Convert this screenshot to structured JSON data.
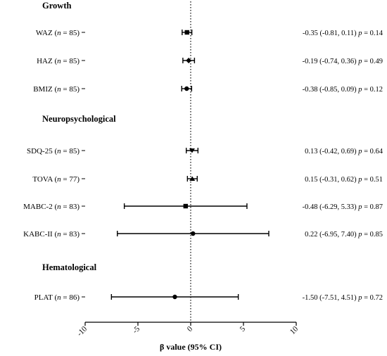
{
  "chart_data": {
    "type": "forest",
    "xlabel": "β value (95% CI)",
    "xlim": [
      -10,
      10
    ],
    "xticks": [
      -10,
      -5,
      0,
      5,
      10
    ],
    "reference_line": 0,
    "rows": [
      {
        "kind": "section",
        "label": "Growth"
      },
      {
        "kind": "item",
        "label_main": "WAZ",
        "n": "85",
        "est": -0.35,
        "lo": -0.81,
        "hi": 0.11,
        "text": "-0.35 (-0.81, 0.11)",
        "p": "0.14",
        "marker": "square"
      },
      {
        "kind": "item",
        "label_main": "HAZ",
        "n": "85",
        "est": -0.19,
        "lo": -0.74,
        "hi": 0.36,
        "text": "-0.19 (-0.74, 0.36)",
        "p": "0.49",
        "marker": "diamond"
      },
      {
        "kind": "item",
        "label_main": "BMIZ",
        "n": "85",
        "est": -0.38,
        "lo": -0.85,
        "hi": 0.09,
        "text": "-0.38 (-0.85, 0.09)",
        "p": "0.12",
        "marker": "circle"
      },
      {
        "kind": "section",
        "label": "Neuropsychological"
      },
      {
        "kind": "item",
        "label_main": "SDQ-25",
        "n": "85",
        "est": 0.13,
        "lo": -0.42,
        "hi": 0.69,
        "text": "0.13 (-0.42, 0.69)",
        "p": "0.64",
        "marker": "triangle-down"
      },
      {
        "kind": "item",
        "label_main": "TOVA",
        "n": "77",
        "est": 0.15,
        "lo": -0.31,
        "hi": 0.62,
        "text": "0.15 (-0.31, 0.62)",
        "p": "0.51",
        "marker": "triangle-up"
      },
      {
        "kind": "item",
        "label_main": "MABC-2",
        "n": "83",
        "est": -0.48,
        "lo": -6.29,
        "hi": 5.33,
        "text": "-0.48 (-6.29, 5.33)",
        "p": "0.87",
        "marker": "square"
      },
      {
        "kind": "item",
        "label_main": "KABC-II",
        "n": "83",
        "est": 0.22,
        "lo": -6.95,
        "hi": 7.4,
        "text": "0.22 (-6.95, 7.40)",
        "p": "0.85",
        "marker": "circle"
      },
      {
        "kind": "section",
        "label": "Hematological"
      },
      {
        "kind": "item",
        "label_main": "PLAT",
        "n": "86",
        "est": -1.5,
        "lo": -7.51,
        "hi": 4.51,
        "text": "-1.50 (-7.51, 4.51)",
        "p": "0.72",
        "marker": "circle"
      }
    ]
  }
}
